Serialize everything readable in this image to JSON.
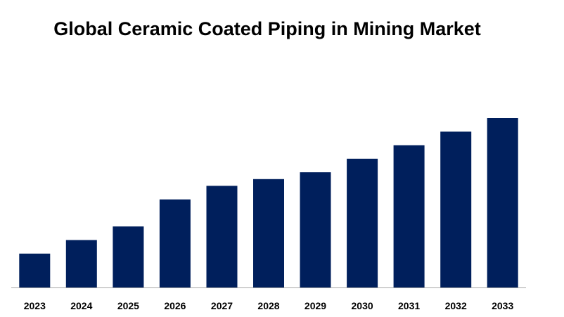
{
  "chart_data": {
    "type": "bar",
    "title": "Global Ceramic Coated Piping in Mining Market",
    "categories": [
      "2023",
      "2024",
      "2025",
      "2026",
      "2027",
      "2028",
      "2029",
      "2030",
      "2031",
      "2032",
      "2033"
    ],
    "values": [
      20,
      28,
      36,
      52,
      60,
      64,
      68,
      76,
      84,
      92,
      100
    ],
    "xlabel": "",
    "ylabel": "",
    "ylim": [
      0,
      100
    ],
    "grid": false,
    "legend": "none",
    "bar_color": "#001f5c",
    "axis_color": "#a6a6a6"
  }
}
